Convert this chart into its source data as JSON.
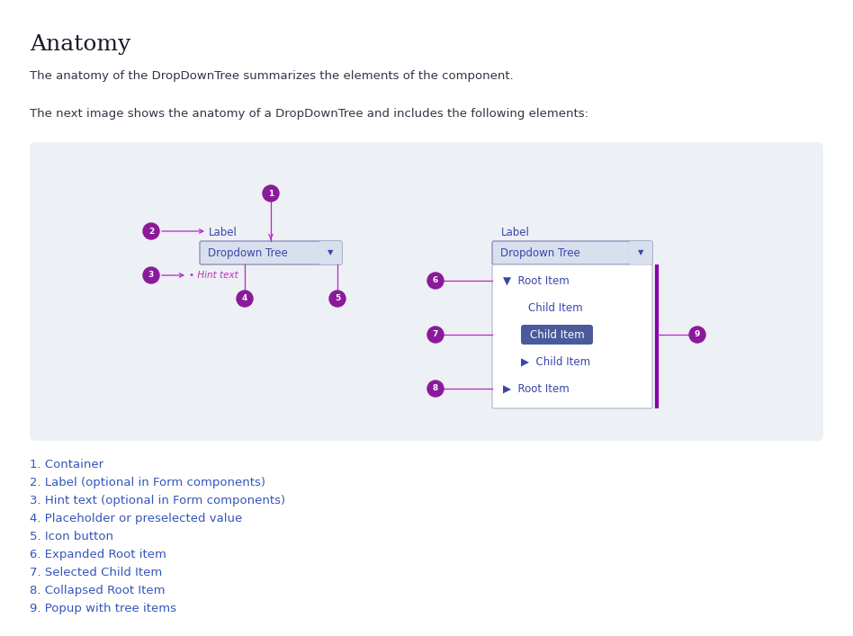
{
  "title": "Anatomy",
  "subtitle1": "The anatomy of the DropDownTree summarizes the elements of the component.",
  "subtitle2": "The next image shows the anatomy of a DropDownTree and includes the following elements:",
  "bg_color": "#edf0f5",
  "page_bg": "#ffffff",
  "legend_items": [
    "1. Container",
    "2. Label (optional in Form components)",
    "3. Hint text (optional in Form components)",
    "4. Placeholder or preselected value",
    "5. Icon button",
    "6. Expanded Root item",
    "7. Selected Child Item",
    "8. Collapsed Root Item",
    "9. Popup with tree items"
  ],
  "badge_color": "#8b1a9a",
  "badge_text_color": "#ffffff",
  "label_color": "#3355bb",
  "line_color": "#bb22cc",
  "dropdown_bg": "#d8e0ee",
  "dropdown_border": "#9090bb",
  "dropdown_text": "#3a45aa",
  "arrow_color": "#3a45aa",
  "popup_bg": "#ffffff",
  "popup_border": "#b0b0cc",
  "selected_item_bg": "#4a5a9a",
  "selected_item_text": "#ffffff",
  "hint_text_color": "#bb33bb",
  "tree_text_color": "#3a45aa",
  "purple_line_color": "#8800aa",
  "title_color": "#1a1a2a",
  "body_text_color": "#333344"
}
